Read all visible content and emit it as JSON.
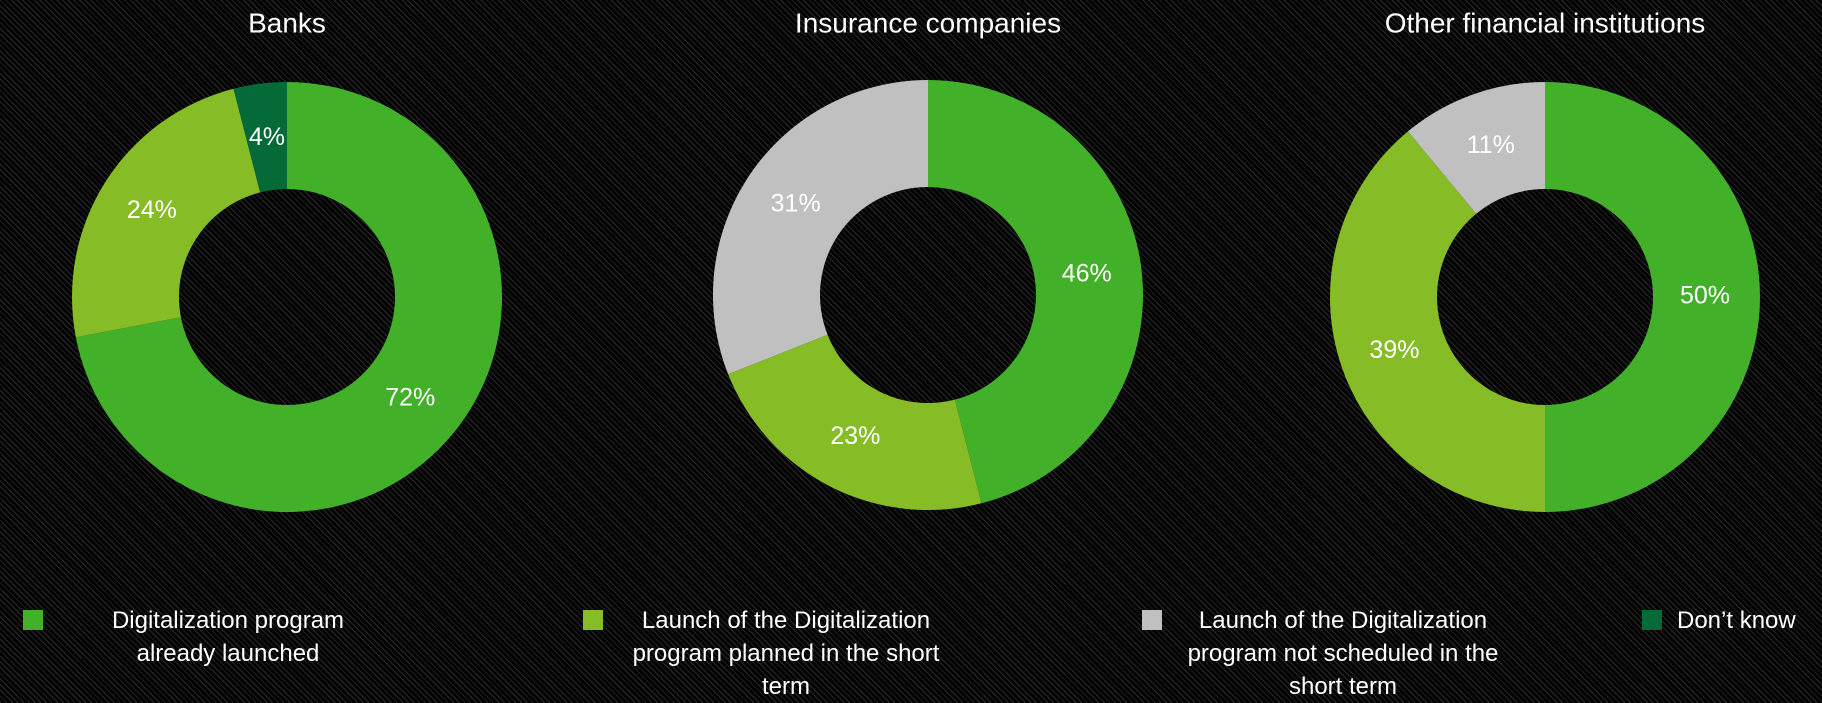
{
  "chart_data": [
    {
      "type": "donut",
      "title": "Banks",
      "values": [
        72,
        24,
        4
      ],
      "value_labels": [
        "72%",
        "24%",
        "4%"
      ],
      "colors": [
        "#43b02a",
        "#86bc25",
        "#046a38"
      ]
    },
    {
      "type": "donut",
      "title": "Insurance companies",
      "values": [
        46,
        23,
        31
      ],
      "value_labels": [
        "46%",
        "23%",
        "31%"
      ],
      "colors": [
        "#43b02a",
        "#86bc25",
        "#c0c0c0"
      ]
    },
    {
      "type": "donut",
      "title": "Other financial institutions",
      "values": [
        50,
        39,
        11
      ],
      "value_labels": [
        "50%",
        "39%",
        "11%"
      ],
      "colors": [
        "#43b02a",
        "#86bc25",
        "#c0c0c0"
      ]
    }
  ],
  "legend": [
    {
      "label": "Digitalization program already launched",
      "color": "#43b02a"
    },
    {
      "label": "Launch of the Digitalization program planned in the short term",
      "color": "#86bc25"
    },
    {
      "label": "Launch of the Digitalization program not scheduled in the short term",
      "color": "#c0c0c0"
    },
    {
      "label": "Don’t know",
      "color": "#046a38"
    }
  ]
}
